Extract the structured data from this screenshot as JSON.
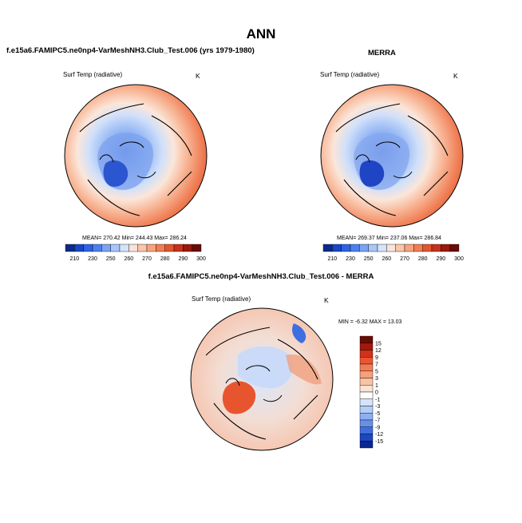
{
  "main_title": "ANN",
  "panels": [
    {
      "title": "f.e15a6.FAMIPC5.ne0np4-VarMeshNH3.Club_Test.006 (yrs 1979-1980)",
      "variable": "Surf Temp (radiative)",
      "units": "K",
      "stats": "MEAN= 270.42  Min= 244.43  Max= 286.24"
    },
    {
      "title": "MERRA",
      "variable": "Surf Temp (radiative)",
      "units": "K",
      "stats": "MEAN= 269.37  Min= 237.06  Max= 286.84"
    },
    {
      "title": "f.e15a6.FAMIPC5.ne0np4-VarMeshNH3.Club_Test.006 - MERRA",
      "variable": "Surf Temp (radiative)",
      "units": "K",
      "stats": "MIN =  -6.32 MAX =  13.03"
    }
  ],
  "colorbar_abs": {
    "colors": [
      "#0a2a8c",
      "#1846c8",
      "#2f62e4",
      "#4d80ee",
      "#7aa3f3",
      "#a9c6f8",
      "#d4e4fb",
      "#f8e4d8",
      "#fbc5a8",
      "#f9a37c",
      "#f27d52",
      "#e2552f",
      "#c73319",
      "#9a1a0b",
      "#6b0b04"
    ],
    "labels": [
      "210",
      "230",
      "250",
      "260",
      "270",
      "280",
      "290",
      "300"
    ]
  },
  "colorbar_diff": {
    "colors": [
      "#6b0b04",
      "#a3180a",
      "#d2311a",
      "#ec5530",
      "#f27d55",
      "#f7a07a",
      "#fbc3a3",
      "#fde2d0",
      "#ffffff",
      "#d6e4fb",
      "#b4cdf8",
      "#8cb0f2",
      "#6690ea",
      "#3f6ee0",
      "#1c47c3",
      "#0b268f"
    ],
    "labels": [
      "15",
      "12",
      "9",
      "7",
      "5",
      "3",
      "1",
      "0",
      "-1",
      "-3",
      "-5",
      "-7",
      "-9",
      "-12",
      "-15"
    ]
  }
}
